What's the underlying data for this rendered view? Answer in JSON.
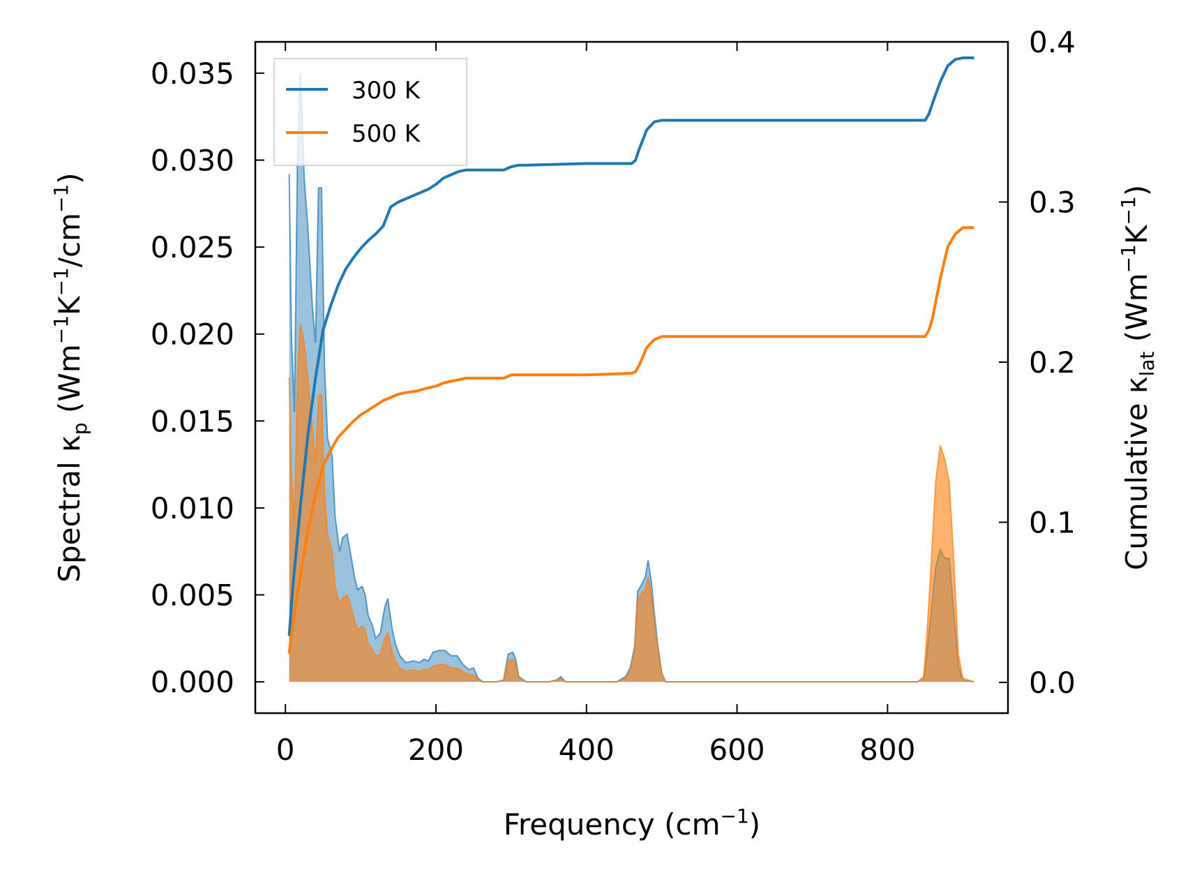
{
  "chart_data": {
    "type": "area",
    "xlabel": "Frequency (cm",
    "xlabel_sup": "−1",
    "xlabel_end": ")",
    "ylabel_left_parts": [
      "Spectral κ",
      "p",
      " (Wm",
      "−1",
      "K",
      "−1",
      "/cm",
      "−1",
      ")"
    ],
    "ylabel_right_parts": [
      "Cumulative κ",
      "lat",
      " (Wm",
      "−1",
      "K",
      "−1",
      ")"
    ],
    "xlim": [
      -40,
      960
    ],
    "ylim_left": [
      -0.0018,
      0.0368
    ],
    "ylim_right": [
      -0.0192,
      0.4
    ],
    "x_ticks": [
      0,
      200,
      400,
      600,
      800
    ],
    "x_tick_labels": [
      "0",
      "200",
      "400",
      "600",
      "800"
    ],
    "y_left_ticks": [
      0,
      0.005,
      0.01,
      0.015,
      0.02,
      0.025,
      0.03,
      0.035
    ],
    "y_left_tick_labels": [
      "0.000",
      "0.005",
      "0.010",
      "0.015",
      "0.020",
      "0.025",
      "0.030",
      "0.035"
    ],
    "y_right_ticks": [
      0,
      0.1,
      0.2,
      0.3,
      0.4
    ],
    "y_right_tick_labels": [
      "0.0",
      "0.1",
      "0.2",
      "0.3",
      "0.4"
    ],
    "legend_position": "top-left",
    "series": [
      {
        "name": "300 K",
        "color": "#1f77b4",
        "spectral": [
          [
            5,
            0.0292
          ],
          [
            8,
            0.02
          ],
          [
            12,
            0.0155
          ],
          [
            16,
            0.03
          ],
          [
            20,
            0.035
          ],
          [
            25,
            0.029
          ],
          [
            30,
            0.026
          ],
          [
            36,
            0.0215
          ],
          [
            40,
            0.0195
          ],
          [
            44,
            0.0284
          ],
          [
            48,
            0.0284
          ],
          [
            52,
            0.018
          ],
          [
            56,
            0.014
          ],
          [
            62,
            0.013
          ],
          [
            66,
            0.0095
          ],
          [
            72,
            0.0075
          ],
          [
            76,
            0.0083
          ],
          [
            82,
            0.0085
          ],
          [
            86,
            0.0075
          ],
          [
            92,
            0.006
          ],
          [
            96,
            0.0053
          ],
          [
            102,
            0.0055
          ],
          [
            106,
            0.005
          ],
          [
            110,
            0.0038
          ],
          [
            116,
            0.0032
          ],
          [
            120,
            0.0025
          ],
          [
            126,
            0.0028
          ],
          [
            132,
            0.0043
          ],
          [
            136,
            0.0048
          ],
          [
            142,
            0.003
          ],
          [
            146,
            0.0022
          ],
          [
            152,
            0.0015
          ],
          [
            160,
            0.0011
          ],
          [
            170,
            0.0012
          ],
          [
            178,
            0.0011
          ],
          [
            184,
            0.0013
          ],
          [
            190,
            0.0012
          ],
          [
            196,
            0.0017
          ],
          [
            204,
            0.0018
          ],
          [
            212,
            0.0018
          ],
          [
            220,
            0.0015
          ],
          [
            228,
            0.0015
          ],
          [
            236,
            0.001
          ],
          [
            244,
            0.0007
          ],
          [
            250,
            0.0008
          ],
          [
            256,
            0.0002
          ],
          [
            262,
            0.0
          ],
          [
            280,
            0.0
          ],
          [
            290,
            0.0001
          ],
          [
            296,
            0.0016
          ],
          [
            302,
            0.0017
          ],
          [
            306,
            0.0013
          ],
          [
            310,
            0.0003
          ],
          [
            320,
            0.0
          ],
          [
            350,
            0.0
          ],
          [
            360,
            0.0001
          ],
          [
            366,
            0.0003
          ],
          [
            372,
            0.0
          ],
          [
            440,
            0.0
          ],
          [
            452,
            0.0003
          ],
          [
            458,
            0.0008
          ],
          [
            464,
            0.002
          ],
          [
            468,
            0.0052
          ],
          [
            472,
            0.0055
          ],
          [
            478,
            0.006
          ],
          [
            482,
            0.007
          ],
          [
            486,
            0.0058
          ],
          [
            490,
            0.004
          ],
          [
            495,
            0.002
          ],
          [
            500,
            0.0005
          ],
          [
            505,
            0.0
          ],
          [
            840,
            0.0
          ],
          [
            848,
            0.0002
          ],
          [
            852,
            0.0015
          ],
          [
            858,
            0.004
          ],
          [
            864,
            0.0066
          ],
          [
            870,
            0.0076
          ],
          [
            876,
            0.0071
          ],
          [
            882,
            0.0071
          ],
          [
            888,
            0.004
          ],
          [
            894,
            0.0009
          ],
          [
            900,
            0.0001
          ],
          [
            915,
            0.0
          ]
        ],
        "cumulative": [
          [
            5,
            0.029
          ],
          [
            10,
            0.06
          ],
          [
            20,
            0.11
          ],
          [
            30,
            0.155
          ],
          [
            40,
            0.19
          ],
          [
            50,
            0.22
          ],
          [
            60,
            0.235
          ],
          [
            70,
            0.248
          ],
          [
            80,
            0.258
          ],
          [
            90,
            0.265
          ],
          [
            100,
            0.271
          ],
          [
            110,
            0.276
          ],
          [
            120,
            0.28
          ],
          [
            130,
            0.285
          ],
          [
            140,
            0.297
          ],
          [
            150,
            0.3
          ],
          [
            160,
            0.302
          ],
          [
            175,
            0.305
          ],
          [
            190,
            0.308
          ],
          [
            200,
            0.311
          ],
          [
            210,
            0.315
          ],
          [
            220,
            0.317
          ],
          [
            230,
            0.319
          ],
          [
            240,
            0.32
          ],
          [
            250,
            0.32
          ],
          [
            270,
            0.32
          ],
          [
            290,
            0.32
          ],
          [
            300,
            0.322
          ],
          [
            310,
            0.323
          ],
          [
            320,
            0.323
          ],
          [
            400,
            0.324
          ],
          [
            460,
            0.324
          ],
          [
            465,
            0.326
          ],
          [
            470,
            0.333
          ],
          [
            480,
            0.345
          ],
          [
            490,
            0.35
          ],
          [
            500,
            0.351
          ],
          [
            600,
            0.351
          ],
          [
            700,
            0.351
          ],
          [
            800,
            0.351
          ],
          [
            850,
            0.351
          ],
          [
            855,
            0.355
          ],
          [
            860,
            0.362
          ],
          [
            870,
            0.375
          ],
          [
            880,
            0.385
          ],
          [
            890,
            0.389
          ],
          [
            900,
            0.39
          ],
          [
            915,
            0.39
          ]
        ]
      },
      {
        "name": "500 K",
        "color": "#ff7f0e",
        "spectral": [
          [
            5,
            0.0175
          ],
          [
            8,
            0.012
          ],
          [
            12,
            0.0092
          ],
          [
            16,
            0.0175
          ],
          [
            20,
            0.0206
          ],
          [
            25,
            0.0195
          ],
          [
            30,
            0.0175
          ],
          [
            36,
            0.0145
          ],
          [
            40,
            0.0125
          ],
          [
            44,
            0.0165
          ],
          [
            48,
            0.0165
          ],
          [
            52,
            0.0108
          ],
          [
            56,
            0.0085
          ],
          [
            62,
            0.0075
          ],
          [
            66,
            0.0055
          ],
          [
            72,
            0.0045
          ],
          [
            76,
            0.0048
          ],
          [
            82,
            0.005
          ],
          [
            86,
            0.0045
          ],
          [
            92,
            0.0035
          ],
          [
            96,
            0.003
          ],
          [
            102,
            0.0032
          ],
          [
            106,
            0.003
          ],
          [
            110,
            0.0022
          ],
          [
            116,
            0.0018
          ],
          [
            120,
            0.0015
          ],
          [
            126,
            0.0016
          ],
          [
            132,
            0.0025
          ],
          [
            136,
            0.0028
          ],
          [
            142,
            0.0017
          ],
          [
            146,
            0.0012
          ],
          [
            152,
            0.0008
          ],
          [
            160,
            0.0006
          ],
          [
            170,
            0.0007
          ],
          [
            178,
            0.0006
          ],
          [
            184,
            0.0007
          ],
          [
            190,
            0.0007
          ],
          [
            196,
            0.0009
          ],
          [
            204,
            0.001
          ],
          [
            212,
            0.001
          ],
          [
            220,
            0.0008
          ],
          [
            228,
            0.0008
          ],
          [
            236,
            0.0006
          ],
          [
            244,
            0.0004
          ],
          [
            250,
            0.0004
          ],
          [
            256,
            0.0001
          ],
          [
            262,
            0.0
          ],
          [
            280,
            0.0
          ],
          [
            290,
            0.0001
          ],
          [
            296,
            0.0012
          ],
          [
            302,
            0.0013
          ],
          [
            306,
            0.001
          ],
          [
            310,
            0.0002
          ],
          [
            320,
            0.0
          ],
          [
            350,
            0.0
          ],
          [
            360,
            0.0001
          ],
          [
            366,
            0.0002
          ],
          [
            372,
            0.0
          ],
          [
            440,
            0.0
          ],
          [
            452,
            0.0002
          ],
          [
            458,
            0.0006
          ],
          [
            464,
            0.0018
          ],
          [
            468,
            0.0048
          ],
          [
            472,
            0.005
          ],
          [
            478,
            0.0053
          ],
          [
            482,
            0.006
          ],
          [
            486,
            0.005
          ],
          [
            490,
            0.0035
          ],
          [
            495,
            0.0018
          ],
          [
            500,
            0.0004
          ],
          [
            505,
            0.0
          ],
          [
            840,
            0.0
          ],
          [
            848,
            0.0003
          ],
          [
            852,
            0.0025
          ],
          [
            858,
            0.0068
          ],
          [
            864,
            0.0115
          ],
          [
            870,
            0.0136
          ],
          [
            876,
            0.0128
          ],
          [
            882,
            0.0115
          ],
          [
            888,
            0.007
          ],
          [
            894,
            0.0016
          ],
          [
            900,
            0.0002
          ],
          [
            915,
            0.0
          ]
        ],
        "cumulative": [
          [
            5,
            0.018
          ],
          [
            10,
            0.037
          ],
          [
            20,
            0.067
          ],
          [
            30,
            0.095
          ],
          [
            40,
            0.117
          ],
          [
            50,
            0.135
          ],
          [
            60,
            0.145
          ],
          [
            70,
            0.153
          ],
          [
            80,
            0.158
          ],
          [
            90,
            0.163
          ],
          [
            100,
            0.167
          ],
          [
            110,
            0.17
          ],
          [
            120,
            0.173
          ],
          [
            130,
            0.176
          ],
          [
            140,
            0.178
          ],
          [
            150,
            0.18
          ],
          [
            160,
            0.181
          ],
          [
            175,
            0.182
          ],
          [
            190,
            0.184
          ],
          [
            200,
            0.185
          ],
          [
            210,
            0.187
          ],
          [
            220,
            0.188
          ],
          [
            230,
            0.189
          ],
          [
            240,
            0.19
          ],
          [
            270,
            0.19
          ],
          [
            290,
            0.19
          ],
          [
            300,
            0.192
          ],
          [
            320,
            0.192
          ],
          [
            400,
            0.192
          ],
          [
            460,
            0.193
          ],
          [
            465,
            0.194
          ],
          [
            470,
            0.198
          ],
          [
            480,
            0.209
          ],
          [
            490,
            0.214
          ],
          [
            500,
            0.216
          ],
          [
            600,
            0.216
          ],
          [
            700,
            0.216
          ],
          [
            800,
            0.216
          ],
          [
            850,
            0.216
          ],
          [
            855,
            0.22
          ],
          [
            860,
            0.228
          ],
          [
            870,
            0.252
          ],
          [
            880,
            0.272
          ],
          [
            890,
            0.28
          ],
          [
            900,
            0.284
          ],
          [
            915,
            0.284
          ]
        ]
      }
    ]
  }
}
